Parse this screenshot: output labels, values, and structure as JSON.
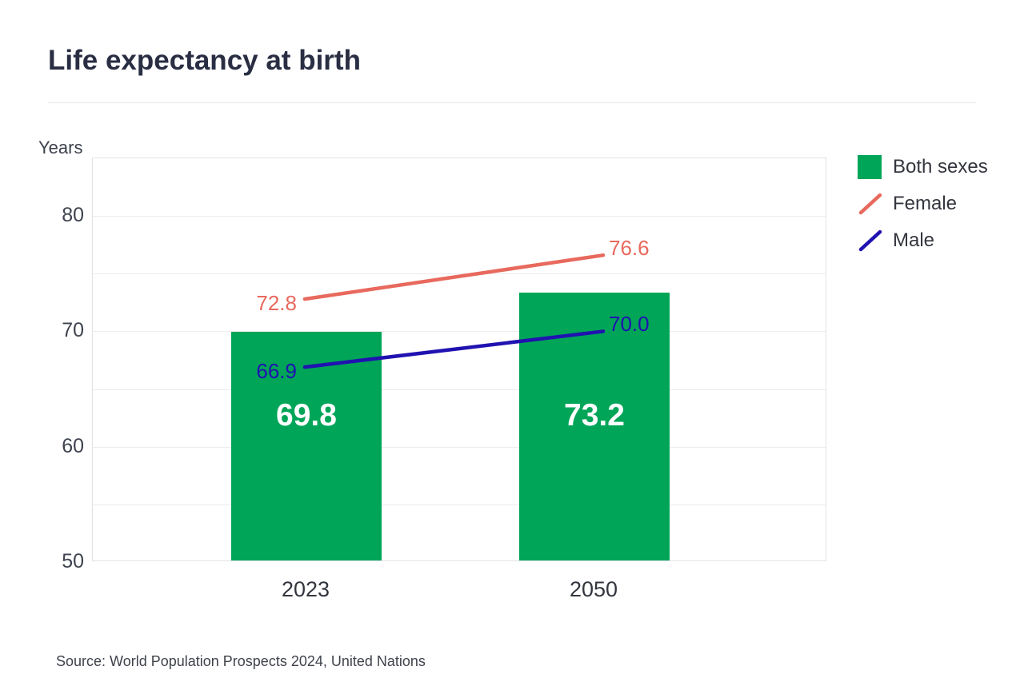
{
  "header": {
    "title": "Life expectancy at birth"
  },
  "footer": {
    "source": "Source: World Population Prospects 2024, United Nations"
  },
  "chart_data": {
    "type": "bar",
    "subtype": "combo-bar-line",
    "unit_label": "Years",
    "categories": [
      "2023",
      "2050"
    ],
    "series": [
      {
        "name": "Both sexes",
        "kind": "bar",
        "values": [
          69.8,
          73.2
        ],
        "color": "#00A558",
        "value_label_color": "#ffffff"
      },
      {
        "name": "Female",
        "kind": "line",
        "values": [
          72.8,
          76.6
        ],
        "color": "#E8695D"
      },
      {
        "name": "Male",
        "kind": "line",
        "values": [
          66.9,
          70.0
        ],
        "color": "#2012B0"
      }
    ],
    "title": "Life expectancy at birth",
    "xlabel": "",
    "ylabel": "Years",
    "ylim": [
      50,
      85
    ],
    "yticks_labeled": [
      50,
      60,
      70,
      80
    ],
    "gridline_step": 5,
    "grid": true,
    "legend_position": "right"
  }
}
